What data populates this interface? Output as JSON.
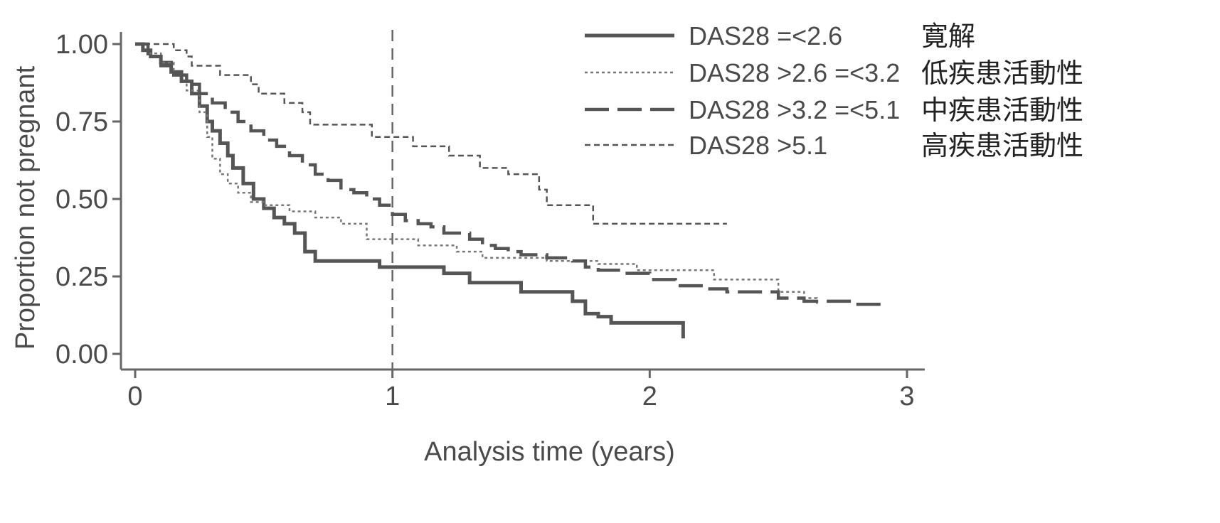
{
  "chart_data": {
    "type": "line",
    "subtype": "kaplan-meier-step",
    "title": "",
    "xlabel": "Analysis time (years)",
    "ylabel": "Proportion not pregnant",
    "xlim": [
      0,
      3
    ],
    "ylim": [
      0,
      1
    ],
    "x_ticks": [
      0,
      1,
      2,
      3
    ],
    "x_tick_labels": [
      "0",
      "1",
      "2",
      "3"
    ],
    "y_ticks": [
      0,
      0.25,
      0.5,
      0.75,
      1.0
    ],
    "y_tick_labels": [
      "0.00",
      "0.25",
      "0.50",
      "0.75",
      "1.00"
    ],
    "grid": false,
    "legend_position": "top-right",
    "reference_line": {
      "x": 1,
      "style": "dashed"
    },
    "series": [
      {
        "name": "DAS28 =<2.6",
        "label_jp": "寛解",
        "style": "solid",
        "color": "#555555",
        "points": [
          [
            0,
            1.0
          ],
          [
            0.03,
            0.98
          ],
          [
            0.06,
            0.96
          ],
          [
            0.1,
            0.94
          ],
          [
            0.14,
            0.91
          ],
          [
            0.18,
            0.88
          ],
          [
            0.22,
            0.84
          ],
          [
            0.25,
            0.8
          ],
          [
            0.28,
            0.75
          ],
          [
            0.3,
            0.72
          ],
          [
            0.33,
            0.68
          ],
          [
            0.36,
            0.64
          ],
          [
            0.38,
            0.6
          ],
          [
            0.42,
            0.55
          ],
          [
            0.46,
            0.5
          ],
          [
            0.5,
            0.47
          ],
          [
            0.54,
            0.44
          ],
          [
            0.58,
            0.42
          ],
          [
            0.62,
            0.39
          ],
          [
            0.66,
            0.33
          ],
          [
            0.7,
            0.3
          ],
          [
            0.8,
            0.3
          ],
          [
            0.9,
            0.3
          ],
          [
            0.95,
            0.28
          ],
          [
            1.0,
            0.28
          ],
          [
            1.15,
            0.28
          ],
          [
            1.2,
            0.26
          ],
          [
            1.3,
            0.23
          ],
          [
            1.4,
            0.23
          ],
          [
            1.5,
            0.2
          ],
          [
            1.6,
            0.2
          ],
          [
            1.7,
            0.17
          ],
          [
            1.75,
            0.13
          ],
          [
            1.8,
            0.12
          ],
          [
            1.85,
            0.1
          ],
          [
            2.0,
            0.1
          ],
          [
            2.13,
            0.1
          ]
        ],
        "end_drop": 0.05
      },
      {
        "name": "DAS28 >2.6 =<3.2",
        "label_jp": "低疾患活動性",
        "style": "dotted",
        "color": "#777777",
        "points": [
          [
            0,
            1.0
          ],
          [
            0.05,
            0.97
          ],
          [
            0.1,
            0.94
          ],
          [
            0.15,
            0.9
          ],
          [
            0.2,
            0.85
          ],
          [
            0.25,
            0.78
          ],
          [
            0.28,
            0.7
          ],
          [
            0.3,
            0.63
          ],
          [
            0.33,
            0.58
          ],
          [
            0.36,
            0.55
          ],
          [
            0.4,
            0.52
          ],
          [
            0.45,
            0.49
          ],
          [
            0.5,
            0.48
          ],
          [
            0.55,
            0.48
          ],
          [
            0.6,
            0.46
          ],
          [
            0.7,
            0.44
          ],
          [
            0.8,
            0.42
          ],
          [
            0.9,
            0.37
          ],
          [
            1.0,
            0.37
          ],
          [
            1.1,
            0.35
          ],
          [
            1.2,
            0.35
          ],
          [
            1.25,
            0.33
          ],
          [
            1.3,
            0.33
          ],
          [
            1.35,
            0.31
          ],
          [
            1.5,
            0.31
          ],
          [
            1.6,
            0.3
          ],
          [
            1.8,
            0.29
          ],
          [
            1.95,
            0.27
          ],
          [
            2.2,
            0.27
          ],
          [
            2.25,
            0.24
          ],
          [
            2.4,
            0.24
          ],
          [
            2.5,
            0.2
          ],
          [
            2.6,
            0.18
          ],
          [
            2.65,
            0.16
          ]
        ]
      },
      {
        "name": "DAS28 >3.2 =<5.1",
        "label_jp": "中疾患活動性",
        "style": "dashed",
        "color": "#555555",
        "points": [
          [
            0,
            1.0
          ],
          [
            0.05,
            0.96
          ],
          [
            0.1,
            0.93
          ],
          [
            0.15,
            0.9
          ],
          [
            0.2,
            0.87
          ],
          [
            0.25,
            0.84
          ],
          [
            0.3,
            0.81
          ],
          [
            0.35,
            0.78
          ],
          [
            0.4,
            0.75
          ],
          [
            0.45,
            0.72
          ],
          [
            0.5,
            0.69
          ],
          [
            0.55,
            0.67
          ],
          [
            0.6,
            0.64
          ],
          [
            0.65,
            0.61
          ],
          [
            0.7,
            0.58
          ],
          [
            0.75,
            0.56
          ],
          [
            0.8,
            0.53
          ],
          [
            0.85,
            0.52
          ],
          [
            0.9,
            0.5
          ],
          [
            0.95,
            0.48
          ],
          [
            1.0,
            0.45
          ],
          [
            1.05,
            0.43
          ],
          [
            1.1,
            0.42
          ],
          [
            1.15,
            0.41
          ],
          [
            1.2,
            0.39
          ],
          [
            1.3,
            0.37
          ],
          [
            1.35,
            0.35
          ],
          [
            1.4,
            0.34
          ],
          [
            1.45,
            0.33
          ],
          [
            1.5,
            0.32
          ],
          [
            1.6,
            0.31
          ],
          [
            1.7,
            0.3
          ],
          [
            1.75,
            0.28
          ],
          [
            1.8,
            0.27
          ],
          [
            1.9,
            0.26
          ],
          [
            2.0,
            0.24
          ],
          [
            2.1,
            0.22
          ],
          [
            2.2,
            0.21
          ],
          [
            2.3,
            0.2
          ],
          [
            2.4,
            0.2
          ],
          [
            2.5,
            0.18
          ],
          [
            2.6,
            0.17
          ],
          [
            2.7,
            0.17
          ],
          [
            2.8,
            0.16
          ],
          [
            2.92,
            0.16
          ]
        ]
      },
      {
        "name": "DAS28 >5.1",
        "label_jp": "高疾患活動性",
        "style": "short-dashed",
        "color": "#555555",
        "points": [
          [
            0,
            1.0
          ],
          [
            0.13,
            1.0
          ],
          [
            0.15,
            0.98
          ],
          [
            0.2,
            0.96
          ],
          [
            0.22,
            0.93
          ],
          [
            0.3,
            0.93
          ],
          [
            0.33,
            0.9
          ],
          [
            0.42,
            0.9
          ],
          [
            0.45,
            0.87
          ],
          [
            0.48,
            0.84
          ],
          [
            0.55,
            0.84
          ],
          [
            0.58,
            0.81
          ],
          [
            0.65,
            0.78
          ],
          [
            0.68,
            0.74
          ],
          [
            0.9,
            0.74
          ],
          [
            0.92,
            0.7
          ],
          [
            1.05,
            0.7
          ],
          [
            1.08,
            0.67
          ],
          [
            1.2,
            0.67
          ],
          [
            1.22,
            0.64
          ],
          [
            1.32,
            0.64
          ],
          [
            1.34,
            0.6
          ],
          [
            1.43,
            0.6
          ],
          [
            1.45,
            0.58
          ],
          [
            1.55,
            0.58
          ],
          [
            1.57,
            0.53
          ],
          [
            1.6,
            0.48
          ],
          [
            1.75,
            0.48
          ],
          [
            1.78,
            0.42
          ],
          [
            2.0,
            0.42
          ],
          [
            2.3,
            0.42
          ]
        ]
      }
    ]
  }
}
